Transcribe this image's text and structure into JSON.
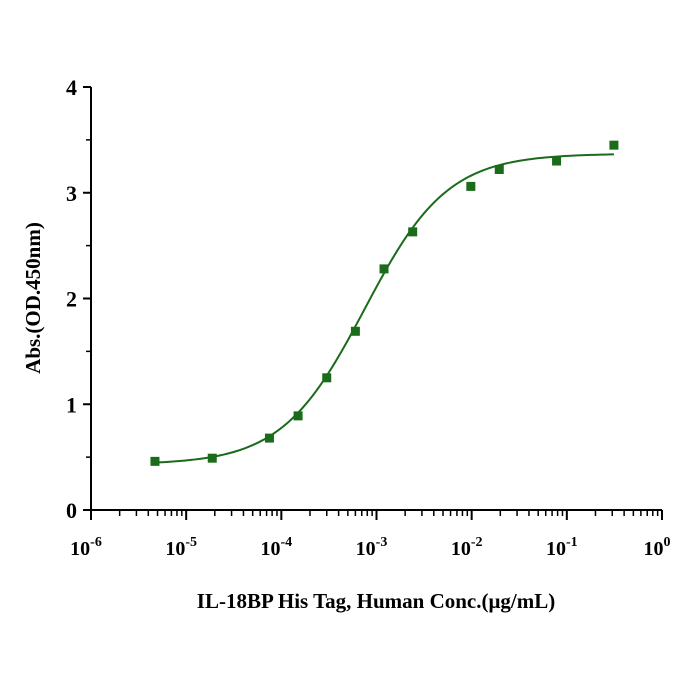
{
  "chart_data": {
    "type": "scatter",
    "title": "",
    "xlabel": "IL-18BP His Tag, Human Conc.(μg/mL)",
    "ylabel": "Abs.(OD.450nm)",
    "xscale": "log",
    "xlim": [
      1e-06,
      1
    ],
    "ylim": [
      0,
      4
    ],
    "x_ticks": [
      {
        "value": 1e-06,
        "base": "10",
        "exp": "-6"
      },
      {
        "value": 1e-05,
        "base": "10",
        "exp": "-5"
      },
      {
        "value": 0.0001,
        "base": "10",
        "exp": "-4"
      },
      {
        "value": 0.001,
        "base": "10",
        "exp": "-3"
      },
      {
        "value": 0.01,
        "base": "10",
        "exp": "-2"
      },
      {
        "value": 0.1,
        "base": "10",
        "exp": "-1"
      },
      {
        "value": 1,
        "base": "10",
        "exp": "0"
      }
    ],
    "y_ticks": [
      {
        "value": 0,
        "label": "0"
      },
      {
        "value": 1,
        "label": "1"
      },
      {
        "value": 2,
        "label": "2"
      },
      {
        "value": 3,
        "label": "3"
      },
      {
        "value": 4,
        "label": "4"
      }
    ],
    "grid": false,
    "color": "#1a6b1a",
    "series": [
      {
        "points": [
          {
            "x": 4.7e-06,
            "y": 0.46
          },
          {
            "x": 1.88e-05,
            "y": 0.49
          },
          {
            "x": 7.5e-05,
            "y": 0.68
          },
          {
            "x": 0.00015,
            "y": 0.89
          },
          {
            "x": 0.0003,
            "y": 1.25
          },
          {
            "x": 0.0006,
            "y": 1.69
          },
          {
            "x": 0.0012,
            "y": 2.28
          },
          {
            "x": 0.0024,
            "y": 2.63
          },
          {
            "x": 0.0098,
            "y": 3.06
          },
          {
            "x": 0.0195,
            "y": 3.22
          },
          {
            "x": 0.078,
            "y": 3.3
          },
          {
            "x": 0.3125,
            "y": 3.45
          }
        ],
        "fit": {
          "model": "4PL",
          "bottom": 0.43,
          "top": 3.37,
          "ec50": 0.00075,
          "hill": 1.0
        }
      }
    ]
  }
}
